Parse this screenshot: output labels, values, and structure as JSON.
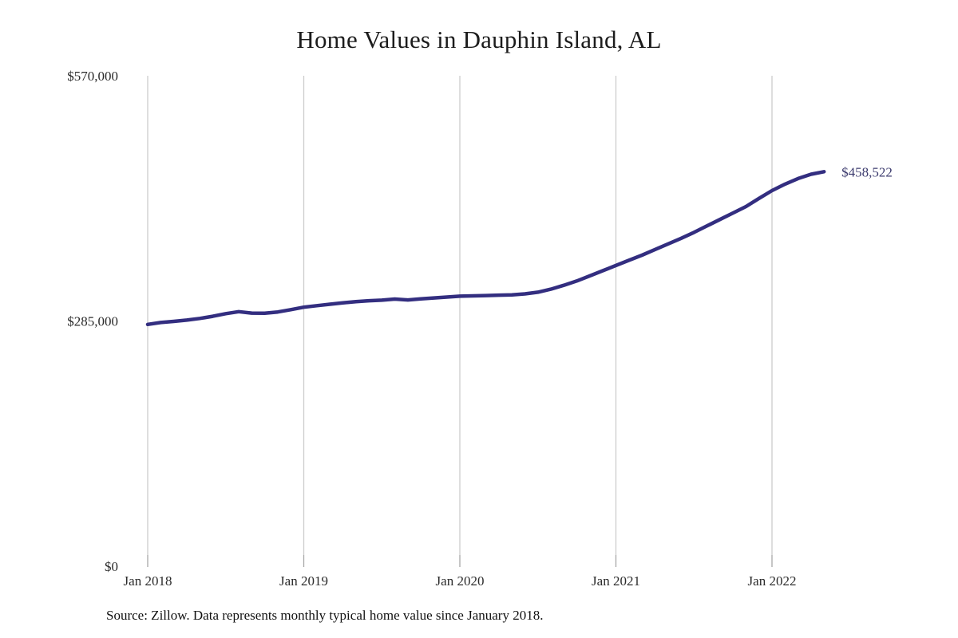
{
  "chart": {
    "title": "Home Values in Dauphin Island, AL",
    "source_note": "Source: Zillow. Data represents monthly typical home value since January 2018."
  },
  "chart_data": {
    "type": "line",
    "title": "Home Values in Dauphin Island, AL",
    "series_name": "Monthly typical home value (Zillow)",
    "x": [
      "2018-01",
      "2018-02",
      "2018-03",
      "2018-04",
      "2018-05",
      "2018-06",
      "2018-07",
      "2018-08",
      "2018-09",
      "2018-10",
      "2018-11",
      "2018-12",
      "2019-01",
      "2019-02",
      "2019-03",
      "2019-04",
      "2019-05",
      "2019-06",
      "2019-07",
      "2019-08",
      "2019-09",
      "2019-10",
      "2019-11",
      "2019-12",
      "2020-01",
      "2020-02",
      "2020-03",
      "2020-04",
      "2020-05",
      "2020-06",
      "2020-07",
      "2020-08",
      "2020-09",
      "2020-10",
      "2020-11",
      "2020-12",
      "2021-01",
      "2021-02",
      "2021-03",
      "2021-04",
      "2021-05",
      "2021-06",
      "2021-07",
      "2021-08",
      "2021-09",
      "2021-10",
      "2021-11",
      "2021-12",
      "2022-01",
      "2022-02",
      "2022-03",
      "2022-04",
      "2022-05"
    ],
    "values": [
      281000,
      283200,
      284500,
      286000,
      288000,
      290500,
      293500,
      295800,
      294200,
      294000,
      295500,
      298200,
      301000,
      302800,
      304500,
      306000,
      307500,
      308500,
      309200,
      310500,
      309500,
      310800,
      311800,
      312800,
      313800,
      314200,
      314600,
      315000,
      315400,
      316500,
      318500,
      322000,
      326500,
      331500,
      337500,
      343500,
      349500,
      355500,
      361500,
      368000,
      374500,
      381000,
      388000,
      395500,
      403000,
      410500,
      418000,
      427500,
      436500,
      444000,
      450500,
      455500,
      458522
    ],
    "end_label": "$458,522",
    "ylim": [
      0,
      570000
    ],
    "yticks": [
      {
        "value": 0,
        "label": "$0"
      },
      {
        "value": 285000,
        "label": "$285,000"
      },
      {
        "value": 570000,
        "label": "$570,000"
      }
    ],
    "xticks": [
      {
        "month_index": 0,
        "label": "Jan 2018"
      },
      {
        "month_index": 12,
        "label": "Jan 2019"
      },
      {
        "month_index": 24,
        "label": "Jan 2020"
      },
      {
        "month_index": 36,
        "label": "Jan 2021"
      },
      {
        "month_index": 48,
        "label": "Jan 2022"
      }
    ],
    "grid": "vertical-only",
    "legend_position": "none",
    "colors": {
      "line": "#332e80",
      "gridline": "#cccccc",
      "axis_tick": "#a8a8a8",
      "tick_label": "#2b2b2b",
      "end_label": "#3c3b6e"
    }
  }
}
